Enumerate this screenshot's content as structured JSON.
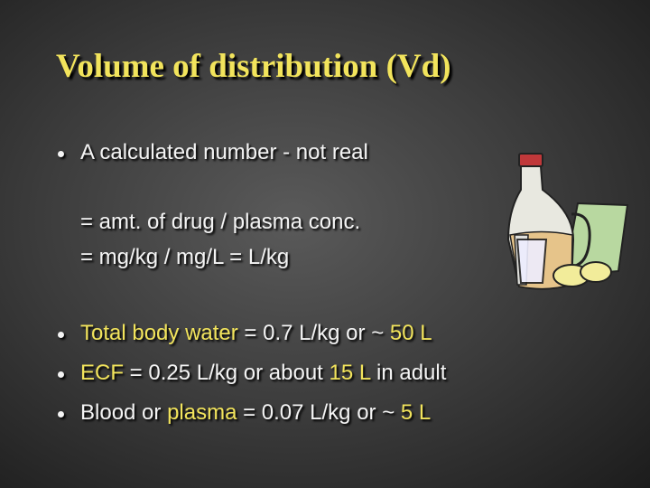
{
  "title": "Volume of distribution (Vd)",
  "bullets": [
    "A calculated number - not real"
  ],
  "formula": [
    "= amt. of drug / plasma conc.",
    "= mg/kg / mg/L = L/kg"
  ],
  "facts": [
    [
      "Total body water",
      " = 0.7 L/kg or ~ ",
      "50 L"
    ],
    [
      "ECF",
      " = 0.25 L/kg or about ",
      "15 L",
      " in adult"
    ],
    [
      "Blood or ",
      "plasma",
      " = 0.07 L/kg or ~ ",
      "5 L"
    ]
  ]
}
